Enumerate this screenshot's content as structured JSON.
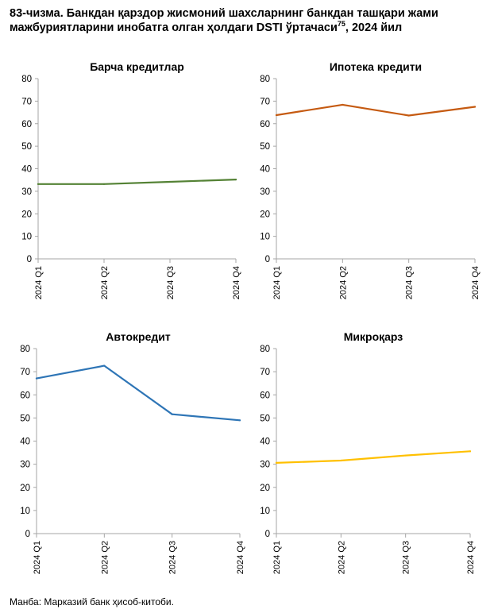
{
  "header": {
    "title_main": "83-чизма. Банкдан қарздор жисмоний шахсларнинг банкдан ташқари жами мажбуриятларини инобатга олган ҳолдаги DSTI ўртачаси",
    "title_sup": "75",
    "title_end": ", 2024 йил"
  },
  "footer": {
    "source": "Манба: Марказий банк ҳисоб-китоби."
  },
  "chart_data": [
    {
      "type": "line",
      "title": "Барча кредитлар",
      "categories": [
        "2024 Q1",
        "2024 Q2",
        "2024 Q3",
        "2024 Q4"
      ],
      "yticks": [
        0,
        10,
        20,
        30,
        40,
        50,
        60,
        70,
        80
      ],
      "ylim": [
        0,
        80
      ],
      "values": [
        33.2,
        33.2,
        34.2,
        35.2
      ],
      "color": "#548235",
      "grid": false,
      "legend": "none"
    },
    {
      "type": "line",
      "title": "Ипотека кредити",
      "categories": [
        "2024 Q1",
        "2024 Q2",
        "2024 Q3",
        "2024 Q4"
      ],
      "yticks": [
        0,
        10,
        20,
        30,
        40,
        50,
        60,
        70,
        80
      ],
      "ylim": [
        0,
        80
      ],
      "values": [
        63.8,
        68.4,
        63.6,
        67.5
      ],
      "color": "#C55A11",
      "grid": false,
      "legend": "none"
    },
    {
      "type": "line",
      "title": "Автокредит",
      "categories": [
        "2024 Q1",
        "2024 Q2",
        "2024 Q3",
        "2024 Q4"
      ],
      "yticks": [
        0,
        10,
        20,
        30,
        40,
        50,
        60,
        70,
        80
      ],
      "ylim": [
        0,
        80
      ],
      "values": [
        67.1,
        72.6,
        51.6,
        49.0
      ],
      "color": "#2E75B6",
      "grid": false,
      "legend": "none"
    },
    {
      "type": "line",
      "title": "Микроқарз",
      "categories": [
        "2024 Q1",
        "2024 Q2",
        "2024 Q3",
        "2024 Q4"
      ],
      "yticks": [
        0,
        10,
        20,
        30,
        40,
        50,
        60,
        70,
        80
      ],
      "ylim": [
        0,
        80
      ],
      "values": [
        30.6,
        31.6,
        33.8,
        35.6
      ],
      "color": "#FFC000",
      "grid": false,
      "legend": "none"
    }
  ]
}
